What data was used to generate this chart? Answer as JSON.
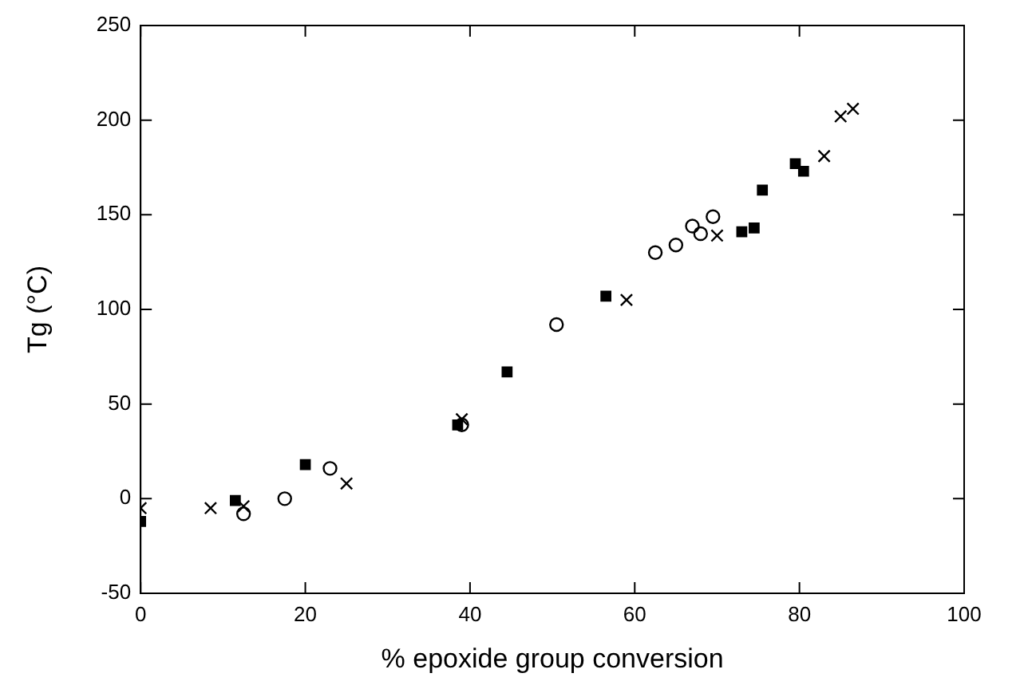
{
  "chart_data": {
    "type": "scatter",
    "xlabel": "% epoxide group conversion",
    "ylabel": "Tg (°C)",
    "xlim": [
      0,
      100
    ],
    "xticks": [
      0,
      20,
      40,
      60,
      80,
      100
    ],
    "ylim": [
      -50,
      250
    ],
    "yticks": [
      -50,
      0,
      50,
      100,
      150,
      200,
      250
    ],
    "grid": false,
    "legend": false,
    "series": [
      {
        "color": "#000000",
        "marker": "square",
        "x": [
          0,
          11.5,
          20,
          38.5,
          44.5,
          56.5,
          73,
          74.5,
          75.5,
          79.5,
          80.5
        ],
        "values": [
          -12,
          -1,
          18,
          39,
          67,
          107,
          141,
          143,
          163,
          177,
          173
        ]
      },
      {
        "color": "#000000",
        "marker": "circle",
        "x": [
          12.5,
          17.5,
          23,
          39,
          50.5,
          62.5,
          65,
          67,
          68,
          69.5
        ],
        "values": [
          -8,
          0,
          16,
          39,
          92,
          130,
          134,
          144,
          140,
          149
        ]
      },
      {
        "color": "#000000",
        "marker": "cross",
        "x": [
          0,
          8.5,
          12.5,
          25,
          39,
          59,
          70,
          83,
          85,
          86.5
        ],
        "values": [
          -5,
          -5,
          -4,
          8,
          42,
          105,
          139,
          181,
          202,
          206
        ]
      }
    ]
  }
}
